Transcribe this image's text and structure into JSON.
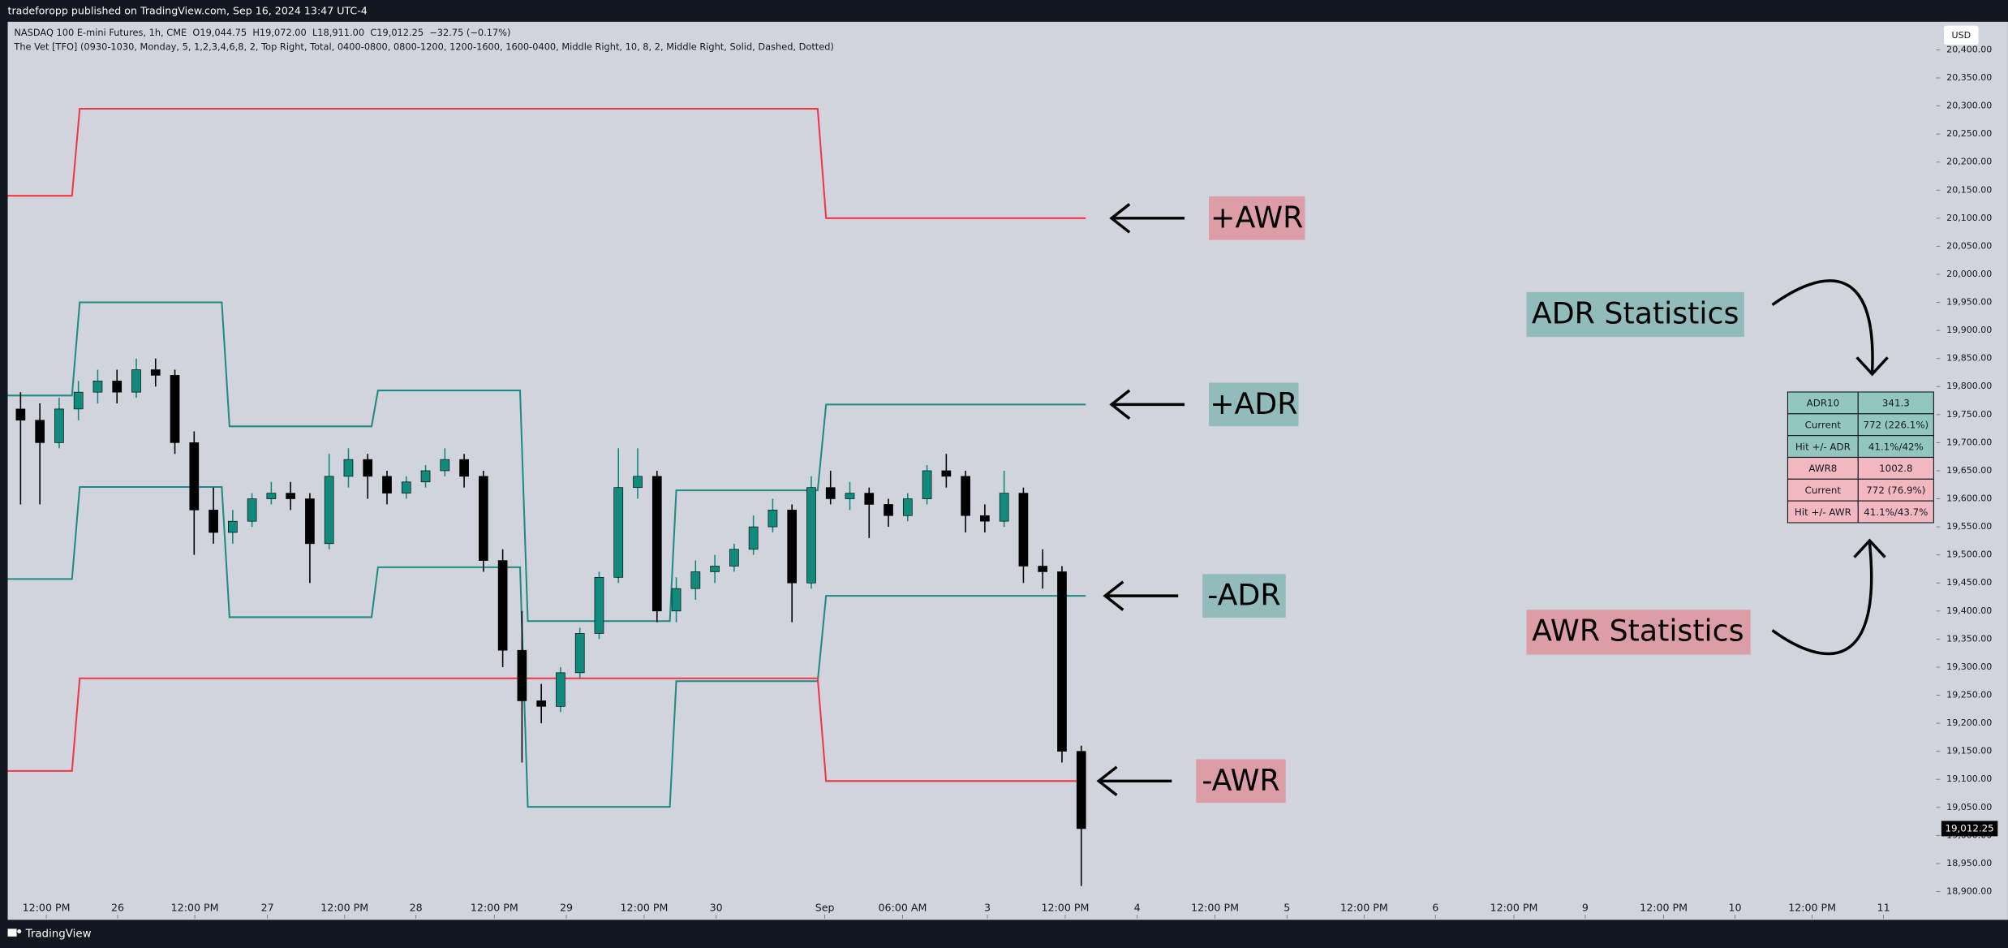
{
  "page": {
    "publisher": "tradeforopp published on TradingView.com, Sep 16, 2024 13:47 UTC-4",
    "symbol_line": "NASDAQ 100 E-mini Futures, 1h, CME  O19,044.75  H19,072.00  L18,911.00  C19,012.25  −32.75 (−0.17%)",
    "study_line": "The Vet [TFO] (0930-1030, Monday, 5, 1,2,3,4,6,8, 2, Top Right, Total, 0400-0800, 0800-1200, 1200-1600, 1600-0400, Middle Right, 10, 8, 2, Middle Right, Solid, Dashed, Dotted)",
    "currency": "USD",
    "brand": "TradingView",
    "annotations": [
      "ADR Statistics",
      "AWR Statistics"
    ]
  },
  "stats_table": {
    "rows": [
      [
        "ADR10",
        "341.3"
      ],
      [
        "Current",
        "772 (226.1%)"
      ],
      [
        "Hit +/- ADR",
        "41.1%/42%"
      ],
      [
        "AWR8",
        "1002.8"
      ],
      [
        "Current",
        "772 (76.9%)"
      ],
      [
        "Hit +/- AWR",
        "41.1%/43.7%"
      ]
    ]
  },
  "chart_data": {
    "type": "candlestick",
    "up_color": "#0f8a7c",
    "down_color": "#000000",
    "x": [
      2,
      5,
      8,
      11,
      14,
      17,
      20,
      23,
      26,
      29,
      32,
      35,
      38,
      41,
      44,
      47,
      50,
      53,
      56,
      59,
      62,
      65,
      68,
      71,
      74,
      77,
      80,
      83,
      86,
      89,
      92,
      95,
      98,
      101,
      104,
      107,
      110,
      113,
      116,
      119,
      122,
      125,
      128,
      131,
      134,
      137,
      140,
      143,
      146,
      149,
      152,
      155,
      158,
      161,
      164,
      167
    ],
    "ohlc": [
      [
        19760,
        19790,
        19590,
        19740
      ],
      [
        19740,
        19770,
        19590,
        19700
      ],
      [
        19700,
        19780,
        19690,
        19760
      ],
      [
        19760,
        19810,
        19740,
        19790
      ],
      [
        19790,
        19830,
        19770,
        19810
      ],
      [
        19810,
        19830,
        19770,
        19790
      ],
      [
        19790,
        19850,
        19780,
        19830
      ],
      [
        19830,
        19850,
        19800,
        19820
      ],
      [
        19820,
        19830,
        19680,
        19700
      ],
      [
        19700,
        19720,
        19500,
        19580
      ],
      [
        19580,
        19620,
        19520,
        19540
      ],
      [
        19540,
        19580,
        19520,
        19560
      ],
      [
        19560,
        19610,
        19550,
        19600
      ],
      [
        19600,
        19630,
        19590,
        19610
      ],
      [
        19610,
        19630,
        19580,
        19600
      ],
      [
        19600,
        19610,
        19450,
        19520
      ],
      [
        19520,
        19680,
        19510,
        19640
      ],
      [
        19640,
        19690,
        19620,
        19670
      ],
      [
        19670,
        19680,
        19600,
        19640
      ],
      [
        19640,
        19650,
        19590,
        19610
      ],
      [
        19610,
        19640,
        19600,
        19630
      ],
      [
        19630,
        19660,
        19620,
        19650
      ],
      [
        19650,
        19690,
        19640,
        19670
      ],
      [
        19670,
        19680,
        19620,
        19640
      ],
      [
        19640,
        19650,
        19470,
        19490
      ],
      [
        19490,
        19510,
        19300,
        19330
      ],
      [
        19330,
        19400,
        19130,
        19240
      ],
      [
        19240,
        19270,
        19200,
        19230
      ],
      [
        19230,
        19300,
        19220,
        19290
      ],
      [
        19290,
        19370,
        19280,
        19360
      ],
      [
        19360,
        19470,
        19350,
        19460
      ],
      [
        19460,
        19690,
        19450,
        19620
      ],
      [
        19620,
        19690,
        19600,
        19640
      ],
      [
        19640,
        19650,
        19380,
        19400
      ],
      [
        19400,
        19460,
        19380,
        19440
      ],
      [
        19440,
        19490,
        19420,
        19470
      ],
      [
        19470,
        19500,
        19450,
        19480
      ],
      [
        19480,
        19520,
        19470,
        19510
      ],
      [
        19510,
        19570,
        19500,
        19550
      ],
      [
        19550,
        19600,
        19540,
        19580
      ],
      [
        19580,
        19590,
        19380,
        19450
      ],
      [
        19450,
        19640,
        19440,
        19620
      ],
      [
        19620,
        19650,
        19590,
        19600
      ],
      [
        19600,
        19630,
        19580,
        19610
      ],
      [
        19610,
        19620,
        19530,
        19590
      ],
      [
        19590,
        19600,
        19550,
        19570
      ],
      [
        19570,
        19610,
        19560,
        19600
      ],
      [
        19600,
        19660,
        19590,
        19650
      ],
      [
        19650,
        19680,
        19620,
        19640
      ],
      [
        19640,
        19650,
        19540,
        19570
      ],
      [
        19570,
        19590,
        19540,
        19560
      ],
      [
        19560,
        19650,
        19550,
        19610
      ],
      [
        19610,
        19620,
        19450,
        19480
      ],
      [
        19480,
        19510,
        19440,
        19470
      ],
      [
        19470,
        19480,
        19130,
        19150
      ],
      [
        19150,
        19160,
        18910,
        19012.25
      ]
    ],
    "series": [
      {
        "name": "+AWR",
        "color": "#f23645",
        "x": [
          0,
          10,
          11.2,
          126,
          127.3,
          167.7
        ],
        "values": [
          20140,
          20140,
          20295,
          20295,
          20100,
          20100
        ]
      },
      {
        "name": "+ADR",
        "color": "#1e8c82",
        "x": [
          0,
          10,
          11.2,
          33.3,
          34.5,
          56.6,
          57.6,
          79.7,
          80.9,
          103,
          104,
          126,
          127.3,
          167.7
        ],
        "values": [
          19784,
          19784,
          19950,
          19950,
          19729,
          19729,
          19793,
          19793,
          19382,
          19382,
          19615,
          19615,
          19768,
          19768
        ]
      },
      {
        "name": "-ADR",
        "color": "#1e8c82",
        "x": [
          0,
          10,
          11.2,
          33.3,
          34.5,
          56.6,
          57.6,
          79.7,
          80.9,
          103,
          104,
          126,
          127.3,
          167.7
        ],
        "values": [
          19457,
          19457,
          19621,
          19621,
          19389,
          19389,
          19478,
          19478,
          19051,
          19051,
          19275,
          19275,
          19427,
          19427
        ]
      },
      {
        "name": "-AWR",
        "color": "#f23645",
        "x": [
          0,
          10,
          11.2,
          126,
          127.3,
          167.7
        ],
        "values": [
          19115,
          19115,
          19280,
          19280,
          19097,
          19097
        ]
      }
    ],
    "last_price": {
      "value": 19012.25,
      "label": "19,012.25"
    },
    "xlim": [
      0,
      300
    ],
    "xticks": [
      {
        "value": 6.0,
        "label": "12:00 PM"
      },
      {
        "value": 17.1,
        "label": "26"
      },
      {
        "value": 29.1,
        "label": "12:00 PM"
      },
      {
        "value": 40.4,
        "label": "27"
      },
      {
        "value": 52.4,
        "label": "12:00 PM"
      },
      {
        "value": 63.5,
        "label": "28"
      },
      {
        "value": 75.7,
        "label": "12:00 PM"
      },
      {
        "value": 86.9,
        "label": "29"
      },
      {
        "value": 99.0,
        "label": "12:00 PM"
      },
      {
        "value": 110.2,
        "label": "30"
      },
      {
        "value": 127.1,
        "label": "Sep"
      },
      {
        "value": 139.2,
        "label": "06:00 AM"
      },
      {
        "value": 152.4,
        "label": "3"
      },
      {
        "value": 164.5,
        "label": "12:00 PM"
      },
      {
        "value": 175.7,
        "label": "4"
      },
      {
        "value": 187.8,
        "label": "12:00 PM"
      },
      {
        "value": 199.0,
        "label": "5"
      },
      {
        "value": 211.0,
        "label": "12:00 PM"
      },
      {
        "value": 222.1,
        "label": "6"
      },
      {
        "value": 234.3,
        "label": "12:00 PM"
      },
      {
        "value": 245.4,
        "label": "9"
      },
      {
        "value": 257.6,
        "label": "12:00 PM"
      },
      {
        "value": 268.7,
        "label": "10"
      },
      {
        "value": 280.7,
        "label": "12:00 PM"
      },
      {
        "value": 291.8,
        "label": "11"
      }
    ],
    "ylim": [
      18852,
      20450
    ],
    "yticks": [
      {
        "value": 18900,
        "label": "18,900.00"
      },
      {
        "value": 18950,
        "label": "18,950.00"
      },
      {
        "value": 19000,
        "label": "19,000.00"
      },
      {
        "value": 19050,
        "label": "19,050.00"
      },
      {
        "value": 19100,
        "label": "19,100.00"
      },
      {
        "value": 19150,
        "label": "19,150.00"
      },
      {
        "value": 19200,
        "label": "19,200.00"
      },
      {
        "value": 19250,
        "label": "19,250.00"
      },
      {
        "value": 19300,
        "label": "19,300.00"
      },
      {
        "value": 19350,
        "label": "19,350.00"
      },
      {
        "value": 19400,
        "label": "19,400.00"
      },
      {
        "value": 19450,
        "label": "19,450.00"
      },
      {
        "value": 19500,
        "label": "19,500.00"
      },
      {
        "value": 19550,
        "label": "19,550.00"
      },
      {
        "value": 19600,
        "label": "19,600.00"
      },
      {
        "value": 19650,
        "label": "19,650.00"
      },
      {
        "value": 19700,
        "label": "19,700.00"
      },
      {
        "value": 19750,
        "label": "19,750.00"
      },
      {
        "value": 19800,
        "label": "19,800.00"
      },
      {
        "value": 19850,
        "label": "19,850.00"
      },
      {
        "value": 19900,
        "label": "19,900.00"
      },
      {
        "value": 19950,
        "label": "19,950.00"
      },
      {
        "value": 20000,
        "label": "20,000.00"
      },
      {
        "value": 20050,
        "label": "20,050.00"
      },
      {
        "value": 20100,
        "label": "20,100.00"
      },
      {
        "value": 20150,
        "label": "20,150.00"
      },
      {
        "value": 20200,
        "label": "20,200.00"
      },
      {
        "value": 20250,
        "label": "20,250.00"
      },
      {
        "value": 20300,
        "label": "20,300.00"
      },
      {
        "value": 20350,
        "label": "20,350.00"
      },
      {
        "value": 20400,
        "label": "20,400.00"
      }
    ]
  }
}
